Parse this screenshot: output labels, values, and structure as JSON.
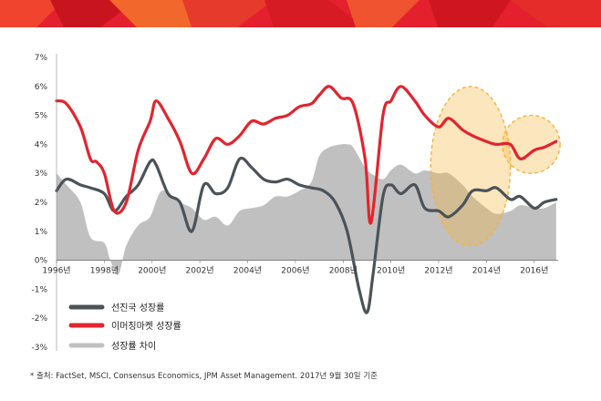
{
  "banner": {
    "colors": [
      "#e5202e",
      "#f0442e",
      "#c8141f",
      "#f2672c"
    ]
  },
  "chart_data": {
    "type": "line",
    "x_range": [
      "1996-01",
      "2016-12"
    ],
    "x_ticks": [
      "1996년",
      "1998년",
      "2000년",
      "2002년",
      "2004년",
      "2006년",
      "2008년",
      "2010년",
      "2012년",
      "2014년",
      "2016년"
    ],
    "y_ticks": [
      "7%",
      "6%",
      "5%",
      "4%",
      "3%",
      "2%",
      "1%",
      "0%",
      "-1%",
      "-2%",
      "-3%"
    ],
    "ylim": [
      -3,
      7
    ],
    "grid": false,
    "legend_position": "bottom-left",
    "series": [
      {
        "name": "선진국 성장률",
        "type": "line",
        "color": "#4b5359",
        "x": [
          "1996-01",
          "1996-06",
          "1997-01",
          "1997-06",
          "1998-01",
          "1998-06",
          "1998-12",
          "1999-06",
          "1999-12",
          "2000-03",
          "2000-09",
          "2001-03",
          "2001-09",
          "2002-03",
          "2002-09",
          "2003-03",
          "2003-09",
          "2004-03",
          "2004-09",
          "2005-03",
          "2005-09",
          "2006-03",
          "2006-09",
          "2007-03",
          "2007-09",
          "2008-03",
          "2008-09",
          "2009-01",
          "2009-04",
          "2009-09",
          "2010-01",
          "2010-06",
          "2011-01",
          "2011-06",
          "2012-01",
          "2012-06",
          "2013-01",
          "2013-06",
          "2014-01",
          "2014-06",
          "2015-01",
          "2015-06",
          "2016-01",
          "2016-06",
          "2016-12"
        ],
        "values": [
          2.4,
          2.8,
          2.6,
          2.5,
          2.3,
          1.7,
          2.2,
          2.6,
          3.4,
          3.3,
          2.3,
          2.0,
          1.0,
          2.6,
          2.3,
          2.5,
          3.5,
          3.2,
          2.8,
          2.7,
          2.8,
          2.6,
          2.5,
          2.4,
          2.0,
          1.0,
          -1.0,
          -1.8,
          -0.5,
          2.2,
          2.6,
          2.3,
          2.6,
          1.8,
          1.7,
          1.5,
          1.9,
          2.4,
          2.4,
          2.5,
          2.1,
          2.2,
          1.8,
          2.0,
          2.1
        ]
      },
      {
        "name": "이머징마켓 성장률",
        "type": "line",
        "color": "#e2242e",
        "x": [
          "1996-01",
          "1996-06",
          "1997-01",
          "1997-06",
          "1997-09",
          "1998-01",
          "1998-06",
          "1998-12",
          "1999-06",
          "1999-12",
          "2000-03",
          "2000-09",
          "2001-03",
          "2001-09",
          "2002-03",
          "2002-09",
          "2003-03",
          "2003-09",
          "2004-03",
          "2004-09",
          "2005-03",
          "2005-09",
          "2006-03",
          "2006-09",
          "2007-01",
          "2007-06",
          "2007-12",
          "2008-06",
          "2008-12",
          "2009-03",
          "2009-09",
          "2010-01",
          "2010-06",
          "2011-01",
          "2011-06",
          "2012-01",
          "2012-06",
          "2013-01",
          "2013-06",
          "2014-01",
          "2014-06",
          "2015-01",
          "2015-06",
          "2016-01",
          "2016-06",
          "2016-12"
        ],
        "values": [
          5.5,
          5.4,
          4.6,
          3.5,
          3.4,
          3.0,
          1.7,
          2.0,
          3.8,
          4.8,
          5.5,
          4.9,
          4.1,
          3.0,
          3.5,
          4.2,
          4.0,
          4.3,
          4.8,
          4.7,
          4.9,
          5.0,
          5.3,
          5.4,
          5.7,
          6.0,
          5.6,
          5.4,
          3.5,
          1.3,
          5.0,
          5.5,
          6.0,
          5.5,
          5.0,
          4.6,
          4.9,
          4.5,
          4.3,
          4.1,
          4.0,
          4.0,
          3.5,
          3.8,
          3.9,
          4.1
        ]
      },
      {
        "name": "성장률 차이",
        "type": "area",
        "color": "#c0c0c0",
        "x": [
          "1996-01",
          "1996-06",
          "1997-01",
          "1997-06",
          "1998-01",
          "1998-04",
          "1998-08",
          "1998-12",
          "1999-06",
          "1999-12",
          "2000-06",
          "2001-03",
          "2001-09",
          "2002-03",
          "2002-09",
          "2003-03",
          "2003-09",
          "2004-03",
          "2004-09",
          "2005-03",
          "2005-09",
          "2006-03",
          "2006-09",
          "2007-01",
          "2007-06",
          "2007-12",
          "2008-03",
          "2008-06",
          "2008-12",
          "2009-03",
          "2009-09",
          "2010-01",
          "2010-06",
          "2011-01",
          "2011-06",
          "2012-01",
          "2012-06",
          "2013-01",
          "2013-06",
          "2014-01",
          "2014-06",
          "2015-01",
          "2015-06",
          "2016-01",
          "2016-06",
          "2016-12"
        ],
        "values": [
          3.0,
          2.6,
          2.0,
          0.8,
          0.6,
          0.0,
          -0.5,
          0.5,
          1.2,
          1.5,
          2.4,
          2.0,
          1.8,
          1.4,
          1.5,
          1.2,
          1.7,
          1.8,
          1.9,
          2.2,
          2.2,
          2.4,
          2.7,
          3.6,
          3.9,
          4.0,
          4.0,
          3.9,
          3.2,
          3.0,
          2.8,
          3.1,
          3.3,
          3.0,
          3.1,
          3.0,
          3.0,
          2.6,
          2.2,
          1.8,
          1.6,
          1.7,
          1.9,
          1.8,
          1.8,
          2.0
        ]
      }
    ],
    "highlights": [
      {
        "type": "ellipse",
        "x_range": [
          "2011-09",
          "2015-01"
        ],
        "y_range": [
          0.5,
          6.0
        ],
        "color": "#f7b23b"
      },
      {
        "type": "ellipse",
        "x_range": [
          "2014-09",
          "2017-02"
        ],
        "y_range": [
          3.0,
          5.0
        ],
        "color": "#f7b23b"
      }
    ]
  },
  "footnote": "* 출처: FactSet, MSCI, Consensus Economics, JPM Asset Management. 2017년 9월 30일 기준"
}
